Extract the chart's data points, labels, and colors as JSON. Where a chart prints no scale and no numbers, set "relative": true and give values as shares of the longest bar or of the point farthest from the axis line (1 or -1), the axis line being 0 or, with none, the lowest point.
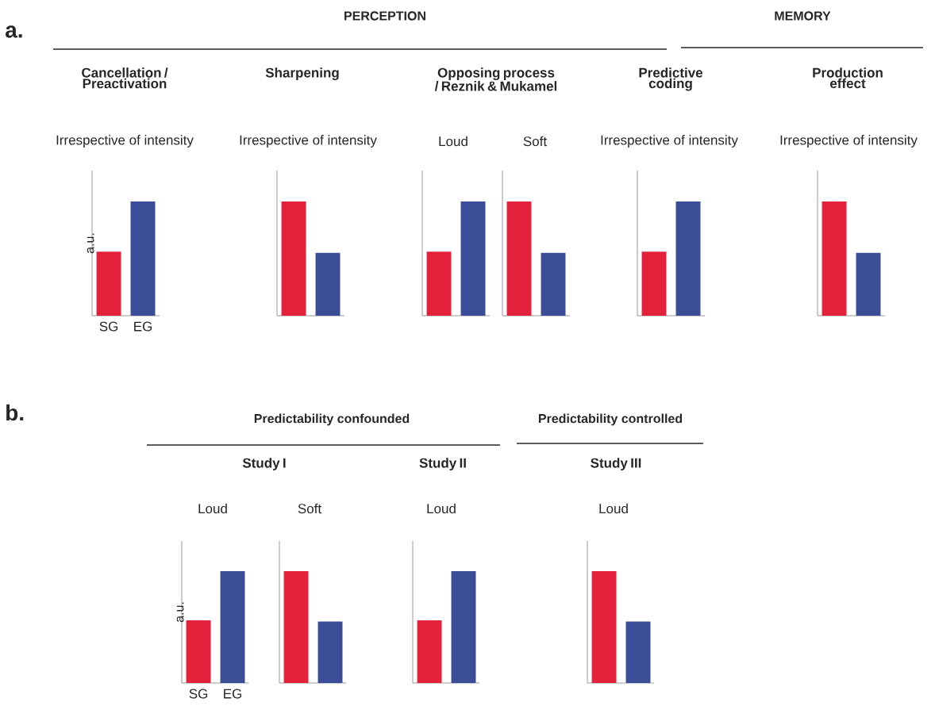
{
  "chart_data": [
    {
      "type": "bar",
      "relative": true,
      "title": "Cancellation / Preactivation",
      "subtitle": "Irrespective of intensity",
      "ylabel": "a.u.",
      "categories": [
        "SG",
        "EG"
      ],
      "values": [
        0.56,
        1
      ],
      "colors": [
        "#e3213b",
        "#3a4d96"
      ],
      "annotations": [
        "a.",
        "PERCEPTION"
      ]
    },
    {
      "type": "bar",
      "relative": true,
      "title": "Sharpening",
      "subtitle": "Irrespective of intensity",
      "categories": [
        null,
        null
      ],
      "values": [
        1,
        0.55
      ],
      "colors": [
        "#e3213b",
        "#3a4d96"
      ]
    },
    {
      "type": "bar",
      "relative": true,
      "title": "Opposing process / Reznik & Mukamel",
      "subtitle": "Loud",
      "categories": [
        null,
        null
      ],
      "values": [
        0.56,
        1
      ],
      "colors": [
        "#e3213b",
        "#3a4d96"
      ]
    },
    {
      "type": "bar",
      "relative": true,
      "subtitle": "Soft",
      "categories": [
        null,
        null
      ],
      "values": [
        1,
        0.55
      ],
      "colors": [
        "#e3213b",
        "#3a4d96"
      ]
    },
    {
      "type": "bar",
      "relative": true,
      "title": "Predictive coding",
      "subtitle": "Irrespective of intensity",
      "categories": [
        null,
        null
      ],
      "values": [
        0.56,
        1
      ],
      "colors": [
        "#e3213b",
        "#3a4d96"
      ]
    },
    {
      "type": "bar",
      "relative": true,
      "title": "Production effect",
      "subtitle": "Irrespective of intensity",
      "categories": [
        null,
        null
      ],
      "values": [
        1,
        0.55
      ],
      "colors": [
        "#e3213b",
        "#3a4d96"
      ],
      "annotations": [
        "MEMORY"
      ]
    },
    {
      "type": "bar",
      "relative": true,
      "title": "Study I",
      "subtitle": "Loud",
      "ylabel": "a.u.",
      "categories": [
        "SG",
        "EG"
      ],
      "values": [
        0.56,
        1
      ],
      "colors": [
        "#e3213b",
        "#3a4d96"
      ],
      "annotations": [
        "b.",
        "Predictability confounded"
      ]
    },
    {
      "type": "bar",
      "relative": true,
      "subtitle": "Soft",
      "categories": [
        null,
        null
      ],
      "values": [
        1,
        0.55
      ],
      "colors": [
        "#e3213b",
        "#3a4d96"
      ]
    },
    {
      "type": "bar",
      "relative": true,
      "title": "Study II",
      "subtitle": "Loud",
      "categories": [
        null,
        null
      ],
      "values": [
        0.56,
        1
      ],
      "colors": [
        "#e3213b",
        "#3a4d96"
      ]
    },
    {
      "type": "bar",
      "relative": true,
      "title": "Study III",
      "subtitle": "Loud",
      "categories": [
        null,
        null
      ],
      "values": [
        1,
        0.55
      ],
      "colors": [
        "#e3213b",
        "#3a4d96"
      ],
      "annotations": [
        "Predictability controlled"
      ]
    }
  ]
}
